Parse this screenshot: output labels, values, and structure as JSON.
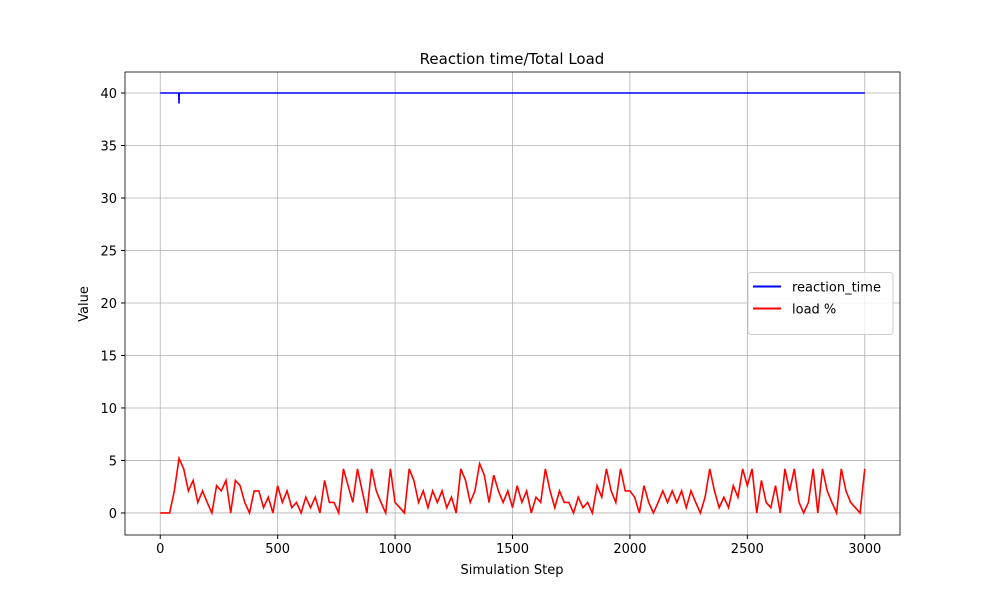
{
  "chart_data": {
    "type": "line",
    "title": "Reaction time/Total Load",
    "xlabel": "Simulation Step",
    "ylabel": "Value",
    "xlim": [
      -150,
      3150
    ],
    "xticks": [
      0,
      500,
      1000,
      1500,
      2000,
      2500,
      3000
    ],
    "ylim": [
      -2.1,
      42
    ],
    "yticks": [
      0,
      5,
      10,
      15,
      20,
      25,
      30,
      35,
      40
    ],
    "grid": true,
    "legend": "center right",
    "series": [
      {
        "name": "reaction_time",
        "color": "#0000ff",
        "x": [
          0,
          79,
          80,
          81,
          3000
        ],
        "values": [
          40,
          40,
          39,
          40,
          40
        ]
      },
      {
        "name": "load %",
        "color": "#ff0000",
        "x": [
          0,
          20,
          40,
          60,
          80,
          100,
          120,
          140,
          160,
          180,
          200,
          220,
          240,
          260,
          280,
          300,
          320,
          340,
          360,
          380,
          400,
          420,
          440,
          460,
          480,
          500,
          520,
          540,
          560,
          580,
          600,
          620,
          640,
          660,
          680,
          700,
          720,
          740,
          760,
          780,
          800,
          820,
          840,
          860,
          880,
          900,
          920,
          940,
          960,
          980,
          1000,
          1020,
          1040,
          1060,
          1080,
          1100,
          1120,
          1140,
          1160,
          1180,
          1200,
          1220,
          1240,
          1260,
          1280,
          1300,
          1320,
          1340,
          1360,
          1380,
          1400,
          1420,
          1440,
          1460,
          1480,
          1500,
          1520,
          1540,
          1560,
          1580,
          1600,
          1620,
          1640,
          1660,
          1680,
          1700,
          1720,
          1740,
          1760,
          1780,
          1800,
          1820,
          1840,
          1860,
          1880,
          1900,
          1920,
          1940,
          1960,
          1980,
          2000,
          2020,
          2040,
          2060,
          2080,
          2100,
          2120,
          2140,
          2160,
          2180,
          2200,
          2220,
          2240,
          2260,
          2280,
          2300,
          2320,
          2340,
          2360,
          2380,
          2400,
          2420,
          2440,
          2460,
          2480,
          2500,
          2520,
          2540,
          2560,
          2580,
          2600,
          2620,
          2640,
          2660,
          2680,
          2700,
          2720,
          2740,
          2760,
          2780,
          2800,
          2820,
          2840,
          2860,
          2880,
          2900,
          2920,
          2940,
          2960,
          2980,
          3000
        ],
        "values": [
          0,
          0,
          0,
          2.1,
          5.2,
          4.2,
          2.1,
          3.1,
          1.0,
          2.1,
          1.0,
          0,
          2.6,
          2.1,
          3.1,
          0,
          3.1,
          2.6,
          1.0,
          0,
          2.1,
          2.1,
          0.5,
          1.5,
          0,
          2.6,
          1.0,
          2.1,
          0.5,
          1.0,
          0,
          1.5,
          0.5,
          1.5,
          0,
          3.1,
          1.0,
          1.0,
          0,
          4.2,
          2.6,
          1.0,
          4.2,
          2.1,
          0,
          4.2,
          2.1,
          1.0,
          0,
          4.2,
          1.0,
          0.5,
          0,
          4.2,
          3.1,
          1.0,
          2.1,
          0.5,
          2.1,
          1.0,
          2.1,
          0.5,
          1.5,
          0,
          4.2,
          3.1,
          1.0,
          2.1,
          4.7,
          3.6,
          1.0,
          3.6,
          2.1,
          1.0,
          2.1,
          0.5,
          2.6,
          1.0,
          2.1,
          0,
          1.5,
          1.0,
          4.2,
          2.1,
          0.5,
          2.1,
          1.0,
          1.0,
          0,
          1.5,
          0.5,
          1.0,
          0,
          2.6,
          1.5,
          4.2,
          2.1,
          1.0,
          4.2,
          2.1,
          2.1,
          1.5,
          0,
          2.6,
          1.0,
          0,
          1.0,
          2.1,
          1.0,
          2.1,
          1.0,
          2.1,
          0.5,
          2.1,
          1.0,
          0,
          1.5,
          4.2,
          2.1,
          0.5,
          1.5,
          0.5,
          2.6,
          1.5,
          4.2,
          2.6,
          4.2,
          0,
          3.1,
          1.0,
          0.5,
          2.6,
          0,
          4.2,
          2.1,
          4.2,
          1.0,
          0,
          1.0,
          4.2,
          0,
          4.2,
          2.1,
          1.0,
          0,
          4.2,
          2.1,
          1.0,
          0.5,
          0,
          4.2
        ]
      }
    ]
  }
}
